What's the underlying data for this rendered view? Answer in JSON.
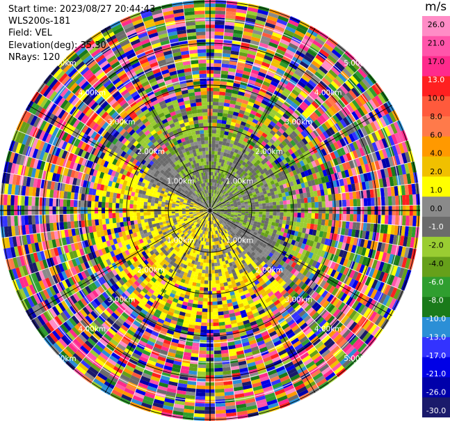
{
  "header": {
    "start_time": "Start time: 2023/08/27 20:44:43",
    "instrument": "WLS200s-181",
    "field": "Field: VEL",
    "elevation": "Elevation(deg): 35.30",
    "nrays": "NRays: 120"
  },
  "chart_data": {
    "type": "ppi-polar",
    "field": "VEL",
    "nrays": 120,
    "elevation_deg": 35.3,
    "range_rings": [
      {
        "label": "1.00km"
      },
      {
        "label": "2.00km"
      },
      {
        "label": "3.00km"
      },
      {
        "label": "4.00km"
      },
      {
        "label": "5.00km"
      }
    ],
    "colorbar": {
      "unit": "m/s",
      "ticks": [
        "26.0",
        "21.0",
        "17.0",
        "13.0",
        "10.0",
        "8.0",
        "6.0",
        "4.0",
        "2.0",
        "1.0",
        "0.0",
        "-1.0",
        "-2.0",
        "-4.0",
        "-6.0",
        "-8.0",
        "-10.0",
        "-13.0",
        "-17.0",
        "-21.0",
        "-26.0",
        "-30.0"
      ],
      "colors": [
        "#1a1a6b",
        "#0000aa",
        "#0000e6",
        "#3333ff",
        "#2b8fd6",
        "#1a7a1a",
        "#2f9e2f",
        "#66a01a",
        "#9acd32",
        "#6b6b6b",
        "#8a8a8a",
        "#ffff00",
        "#f0c000",
        "#ff9900",
        "#ff7a4a",
        "#ff5a3c",
        "#ff2020",
        "#ff2a8c",
        "#ff55aa",
        "#ff8cc6"
      ]
    }
  }
}
